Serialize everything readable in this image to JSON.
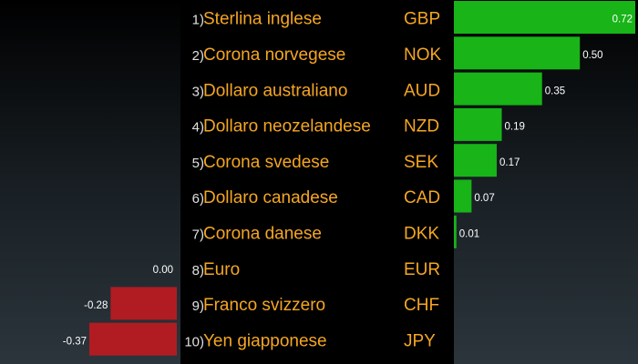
{
  "chart_data": {
    "type": "bar",
    "orientation": "horizontal",
    "categories": [
      {
        "rank": "1)",
        "name": "Sterlina inglese",
        "code": "GBP"
      },
      {
        "rank": "2)",
        "name": "Corona norvegese",
        "code": "NOK"
      },
      {
        "rank": "3)",
        "name": "Dollaro australiano",
        "code": "AUD"
      },
      {
        "rank": "4)",
        "name": "Dollaro neozelandese",
        "code": "NZD"
      },
      {
        "rank": "5)",
        "name": "Corona svedese",
        "code": "SEK"
      },
      {
        "rank": "6)",
        "name": "Dollaro canadese",
        "code": "CAD"
      },
      {
        "rank": "7)",
        "name": "Corona danese",
        "code": "DKK"
      },
      {
        "rank": "8)",
        "name": "Euro",
        "code": "EUR"
      },
      {
        "rank": "9)",
        "name": "Franco svizzero",
        "code": "CHF"
      },
      {
        "rank": "10)",
        "name": "Yen giapponese",
        "code": "JPY"
      }
    ],
    "values": [
      0.72,
      0.5,
      0.35,
      0.19,
      0.17,
      0.07,
      0.01,
      0.0,
      -0.28,
      -0.37
    ],
    "value_labels": [
      "0.72",
      "0.50",
      "0.35",
      "0.19",
      "0.17",
      "0.07",
      "0.01",
      "0.00",
      "-0.28",
      "-0.37"
    ],
    "positive_color": "#18b418",
    "negative_color": "#b01c22",
    "label_color": "#f5a623",
    "background_color": "#1e262b",
    "xlim_positive": [
      0,
      0.72
    ],
    "xlim_negative": [
      -0.37,
      0
    ],
    "grid": false,
    "legend": "none"
  }
}
